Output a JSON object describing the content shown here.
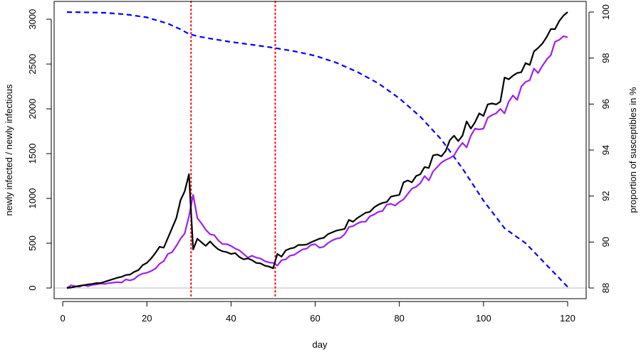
{
  "chart_data": {
    "type": "line",
    "xlabel": "day",
    "ylabel_left": "newly infected / newly infectious",
    "ylabel_right": "proportion of susceptibles in %",
    "xlim": [
      1,
      120
    ],
    "ylim_left": [
      0,
      3080
    ],
    "ylim_right": [
      88,
      100
    ],
    "x_ticks": [
      0,
      20,
      40,
      60,
      80,
      100,
      120
    ],
    "y_left_ticks": [
      0,
      500,
      1000,
      1500,
      2000,
      2500,
      3000
    ],
    "y_right_ticks": [
      88,
      90,
      92,
      94,
      96,
      98,
      100
    ],
    "vlines": [
      30.5,
      50.5
    ],
    "hline": 0,
    "colors": {
      "newly_infected": "#000000",
      "newly_infectious": "#A020F0",
      "susceptibles": "#0000FF",
      "vlines": "#FF0000",
      "hline": "#BEBEBE"
    },
    "series": [
      {
        "key": "newly_infected",
        "axis": "left",
        "style": "solid",
        "x": [
          1,
          2,
          3,
          4,
          5,
          6,
          7,
          8,
          9,
          10,
          11,
          12,
          13,
          14,
          15,
          16,
          17,
          18,
          19,
          20,
          21,
          22,
          23,
          24,
          25,
          26,
          27,
          28,
          29,
          30,
          31,
          32,
          33,
          34,
          35,
          36,
          37,
          38,
          39,
          40,
          41,
          42,
          43,
          44,
          45,
          46,
          47,
          48,
          49,
          50,
          51,
          52,
          53,
          54,
          55,
          56,
          57,
          58,
          59,
          60,
          61,
          62,
          63,
          64,
          65,
          66,
          67,
          68,
          69,
          70,
          71,
          72,
          73,
          74,
          75,
          76,
          77,
          78,
          79,
          80,
          81,
          82,
          83,
          84,
          85,
          86,
          87,
          88,
          89,
          90,
          91,
          92,
          93,
          94,
          95,
          96,
          97,
          98,
          99,
          100,
          101,
          102,
          103,
          104,
          105,
          106,
          107,
          108,
          109,
          110,
          111,
          112,
          113,
          114,
          115,
          116,
          117,
          118,
          119,
          120
        ],
        "values": [
          0,
          5,
          15,
          25,
          30,
          40,
          45,
          55,
          55,
          70,
          85,
          100,
          115,
          125,
          145,
          150,
          180,
          200,
          255,
          280,
          330,
          390,
          460,
          450,
          560,
          670,
          780,
          980,
          1080,
          1270,
          430,
          550,
          510,
          470,
          520,
          470,
          430,
          410,
          400,
          380,
          390,
          345,
          320,
          330,
          310,
          280,
          275,
          250,
          240,
          220,
          380,
          350,
          420,
          440,
          450,
          480,
          480,
          485,
          510,
          530,
          550,
          560,
          600,
          620,
          640,
          650,
          660,
          760,
          740,
          780,
          810,
          840,
          850,
          900,
          930,
          950,
          960,
          1020,
          1030,
          1040,
          1180,
          1200,
          1180,
          1250,
          1270,
          1350,
          1340,
          1480,
          1490,
          1470,
          1530,
          1650,
          1700,
          1640,
          1700,
          1860,
          1780,
          1850,
          1950,
          1920,
          2050,
          2060,
          2050,
          2080,
          2350,
          2330,
          2370,
          2400,
          2410,
          2510,
          2490,
          2640,
          2680,
          2730,
          2800,
          2890,
          2890,
          2980,
          3040,
          3080
        ]
      },
      {
        "key": "newly_infectious",
        "axis": "left",
        "style": "solid",
        "x": [
          1,
          2,
          3,
          4,
          5,
          6,
          7,
          8,
          9,
          10,
          11,
          12,
          13,
          14,
          15,
          16,
          17,
          18,
          19,
          20,
          21,
          22,
          23,
          24,
          25,
          26,
          27,
          28,
          29,
          30,
          31,
          32,
          33,
          34,
          35,
          36,
          37,
          38,
          39,
          40,
          41,
          42,
          43,
          44,
          45,
          46,
          47,
          48,
          49,
          50,
          51,
          52,
          53,
          54,
          55,
          56,
          57,
          58,
          59,
          60,
          61,
          62,
          63,
          64,
          65,
          66,
          67,
          68,
          69,
          70,
          71,
          72,
          73,
          74,
          75,
          76,
          77,
          78,
          79,
          80,
          81,
          82,
          83,
          84,
          85,
          86,
          87,
          88,
          89,
          90,
          91,
          92,
          93,
          94,
          95,
          96,
          97,
          98,
          99,
          100,
          101,
          102,
          103,
          104,
          105,
          106,
          107,
          108,
          109,
          110,
          111,
          112,
          113,
          114,
          115,
          116,
          117,
          118,
          119,
          120
        ],
        "values": [
          0,
          30,
          20,
          15,
          35,
          20,
          35,
          40,
          50,
          45,
          55,
          60,
          65,
          60,
          95,
          85,
          100,
          140,
          160,
          170,
          190,
          215,
          270,
          300,
          380,
          400,
          470,
          550,
          610,
          800,
          1040,
          780,
          720,
          650,
          600,
          590,
          530,
          490,
          490,
          470,
          440,
          420,
          380,
          340,
          360,
          340,
          330,
          300,
          285,
          280,
          250,
          310,
          320,
          360,
          370,
          400,
          430,
          440,
          480,
          490,
          450,
          460,
          500,
          530,
          550,
          560,
          600,
          680,
          690,
          720,
          740,
          740,
          800,
          820,
          850,
          860,
          930,
          940,
          920,
          960,
          990,
          1050,
          1110,
          1130,
          1170,
          1250,
          1200,
          1300,
          1350,
          1400,
          1430,
          1450,
          1480,
          1560,
          1620,
          1570,
          1700,
          1780,
          1770,
          1780,
          1900,
          1930,
          1950,
          2000,
          1950,
          2080,
          2150,
          2100,
          2250,
          2300,
          2320,
          2450,
          2400,
          2480,
          2550,
          2600,
          2750,
          2770,
          2810,
          2800
        ]
      },
      {
        "key": "susceptibles",
        "axis": "right",
        "style": "dashed",
        "x": [
          1,
          5,
          10,
          15,
          20,
          25,
          28,
          30,
          32,
          35,
          40,
          45,
          50,
          55,
          60,
          65,
          70,
          75,
          80,
          85,
          90,
          95,
          100,
          105,
          110,
          115,
          120
        ],
        "values": [
          100,
          99.99,
          99.97,
          99.9,
          99.77,
          99.5,
          99.25,
          99.05,
          98.95,
          98.85,
          98.7,
          98.58,
          98.45,
          98.3,
          98.1,
          97.8,
          97.4,
          96.9,
          96.25,
          95.45,
          94.45,
          93.2,
          91.8,
          90.6,
          89.95,
          89.0,
          88.05
        ]
      }
    ]
  }
}
